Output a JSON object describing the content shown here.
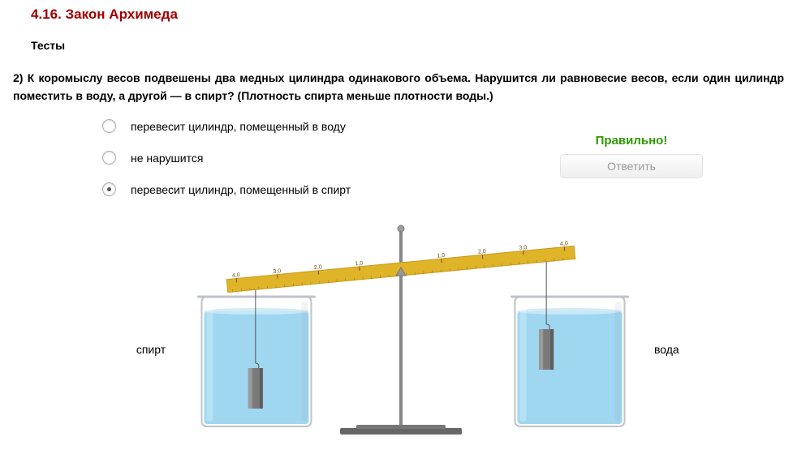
{
  "section_title": "4.16. Закон Архимеда",
  "subsection": "Тесты",
  "question": "2) К коромыслу весов подвешены два медных цилиндра одинакового объема. Нарушится ли равновесие весов, если один цилиндр поместить в воду, а другой — в спирт? (Плотность спирта меньше плотности воды.)",
  "answers": [
    {
      "text": "перевесит цилиндр, помещенный в воду",
      "selected": false
    },
    {
      "text": "не нарушится",
      "selected": false
    },
    {
      "text": "перевесит цилиндр, помещенный в спирт",
      "selected": true
    }
  ],
  "feedback": "Правильно!",
  "button_label": "Ответить",
  "diagram": {
    "left_label": "спирт",
    "right_label": "вода",
    "ruler_ticks": [
      "4,0",
      "3,0",
      "2,0",
      "1,0",
      "1,0",
      "2,0",
      "3,0",
      "4,0"
    ],
    "ruler_color": "#e0b428",
    "ruler_border": "#c89a1e",
    "tick_color": "#6b5210",
    "water_color": "#9fd7f0",
    "water_top": "#cbe9f7",
    "beaker_border": "#bfc3c7",
    "beaker_shadow": "#9aa0a5",
    "cylinder_color": "#7a7a7a",
    "cylinder_shadow": "#5e5e5e",
    "stand_color": "#888",
    "base_color": "#666",
    "knob_color": "#9aa0a5"
  }
}
